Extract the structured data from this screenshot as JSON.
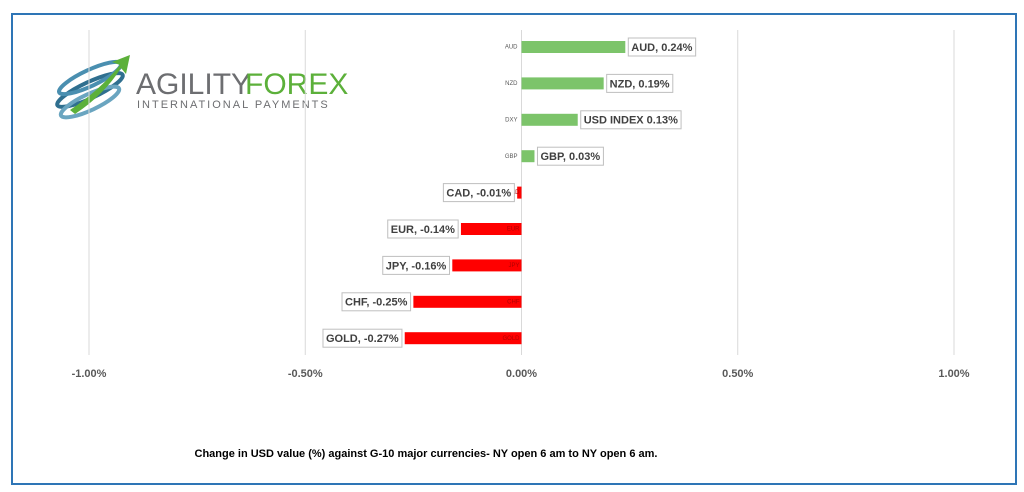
{
  "logo": {
    "brand_a": "AGILITY",
    "brand_b": "FOREX",
    "tagline": "INTERNATIONAL PAYMENTS"
  },
  "chart_data": {
    "type": "hbar",
    "caption": "Change in  USD value (%)  against  G-10 major currencies- NY open 6 am to NY open 6 am.",
    "categories": [
      "AUD",
      "NZD",
      "DXY",
      "GBP",
      "CAD",
      "EUR",
      "JPY",
      "CHF",
      "GOLD"
    ],
    "values": [
      0.24,
      0.19,
      0.13,
      0.03,
      -0.01,
      -0.14,
      -0.16,
      -0.25,
      -0.27
    ],
    "value_labels": [
      "AUD, 0.24%",
      "NZD, 0.19%",
      "USD INDEX 0.13%",
      "GBP, 0.03%",
      "CAD, -0.01%",
      "EUR, -0.14%",
      "JPY, -0.16%",
      "CHF, -0.25%",
      "GOLD, -0.27%"
    ],
    "positive_color": "#7cc46a",
    "negative_color": "#ff0000",
    "xlim": [
      -1,
      1
    ],
    "xticks": [
      {
        "value": -1,
        "label": "-1.00%"
      },
      {
        "value": -0.5,
        "label": "-0.50%"
      },
      {
        "value": 0,
        "label": "0.00%"
      },
      {
        "value": 0.5,
        "label": "0.50%"
      },
      {
        "value": 1,
        "label": "1.00%"
      }
    ],
    "grid": true
  }
}
